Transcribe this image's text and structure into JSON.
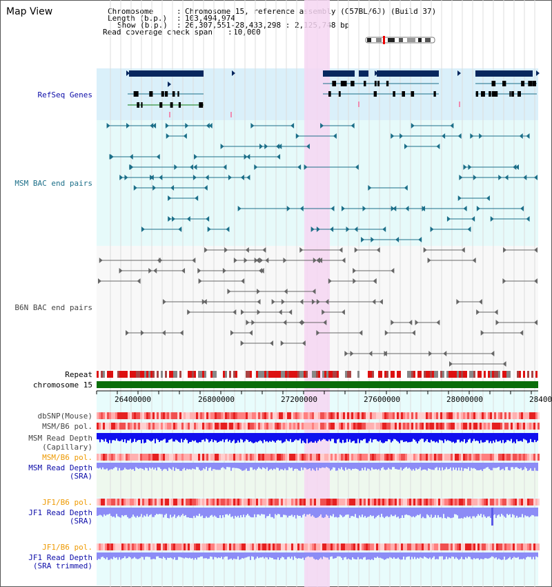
{
  "app": {
    "title": "Map View"
  },
  "info": {
    "chromosome_label": "Chromosome",
    "chromosome_value": "Chromosome 15, reference assembly (C57BL/6J) (Build 37)",
    "length_label": "Length (b.p.)",
    "length_value": "103,494,974",
    "show_label": "Show (b.p.)",
    "show_value": "26,307,551-28,433,298 : 2,125,748 bp",
    "coverage_label": "Read coverage check span",
    "coverage_value": "10,000"
  },
  "tracks": {
    "refseq": "RefSeq Genes",
    "msm_bac": "MSM BAC end pairs",
    "b6n_bac": "B6N BAC end pairs",
    "repeat": "Repeat",
    "chromosome": "chromosome 15",
    "dbsnp": "dbSNP(Mouse)",
    "msm_b6_pol": "MSM/B6 pol.",
    "msm_depth_cap_1": "MSM Read Depth",
    "msm_depth_cap_2": "(Capillary)",
    "msm_b6_pol_2": "MSM/B6 pol.",
    "msm_depth_sra_1": "MSM Read Depth",
    "msm_depth_sra_2": "(SRA)",
    "jf1_b6_pol": "JF1/B6 pol.",
    "jf1_depth_1": "JF1 Read Depth",
    "jf1_depth_2": "(SRA)",
    "jf1_b6_pol_2": "JF1/B6 pol.",
    "jf1_trim_1": "JF1 Read Depth",
    "jf1_trim_2": "(SRA trimmed)"
  },
  "axis": {
    "ticks": [
      "26400000",
      "26800000",
      "27200000",
      "27600000",
      "28000000",
      "28400"
    ]
  },
  "colors": {
    "highlight": "#f6d6f2",
    "refseq_bg": "#daf0fa",
    "bac_bg": "#e6fafa",
    "gene_dark": "#07275e",
    "msm_line": "#1b6e88",
    "b6n_line": "#666666",
    "chrom_green": "#0a6e0a",
    "depth_blue": "#1010ee",
    "depth_light": "#8c8cf6",
    "orange_label": "#ee9900",
    "navy_label": "#0c0ca8"
  }
}
